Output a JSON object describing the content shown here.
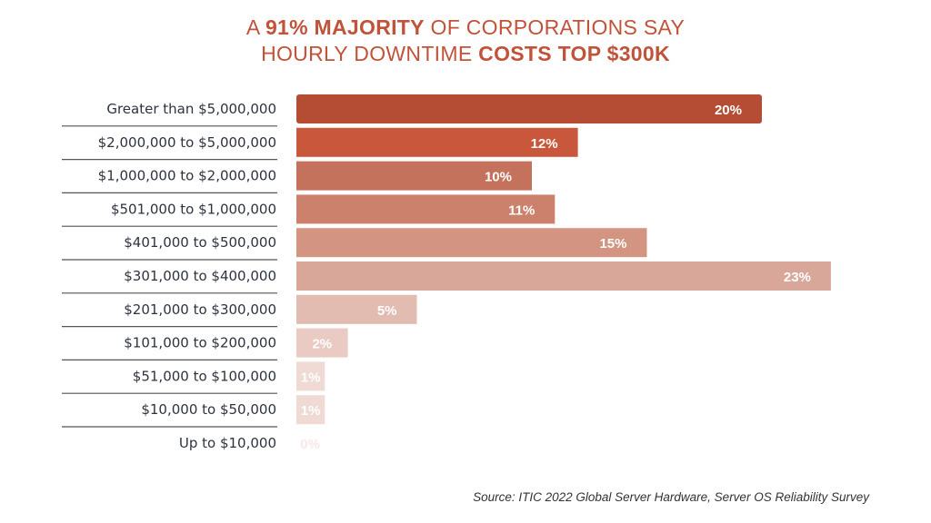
{
  "title": {
    "line1": [
      {
        "text": "A ",
        "bold": false
      },
      {
        "text": "91% MAJORITY",
        "bold": true
      },
      {
        "text": " OF CORPORATIONS SAY",
        "bold": false
      }
    ],
    "line2": [
      {
        "text": "HOURLY DOWNTIME ",
        "bold": false
      },
      {
        "text": "COSTS TOP $300K",
        "bold": true
      }
    ]
  },
  "chart_data": {
    "type": "bar",
    "orientation": "horizontal",
    "categories": [
      "Greater than $5,000,000",
      "$2,000,000 to $5,000,000",
      "$1,000,000 to $2,000,000",
      "$501,000 to $1,000,000",
      "$401,000 to $500,000",
      "$301,000 to $400,000",
      "$201,000 to $300,000",
      "$101,000 to $200,000",
      "$51,000 to $100,000",
      "$10,000 to $50,000",
      "Up to $10,000"
    ],
    "values": [
      20,
      12,
      10,
      11,
      15,
      23,
      5,
      2,
      1,
      1,
      0
    ],
    "data_labels": [
      "20%",
      "12%",
      "10%",
      "11%",
      "15%",
      "23%",
      "5%",
      "2%",
      "1%",
      "1%",
      "0%"
    ],
    "colors": [
      "#b44d34",
      "#c9573b",
      "#c4725c",
      "#cb816c",
      "#d39482",
      "#d9a799",
      "#e2bcb0",
      "#eacbc3",
      "#efdad4",
      "#efdad4",
      "#f6e9e5"
    ],
    "unit": "%",
    "grid": false,
    "legend": "none"
  },
  "source": "Source: ITIC 2022 Global Server Hardware, Server OS Reliability Survey"
}
